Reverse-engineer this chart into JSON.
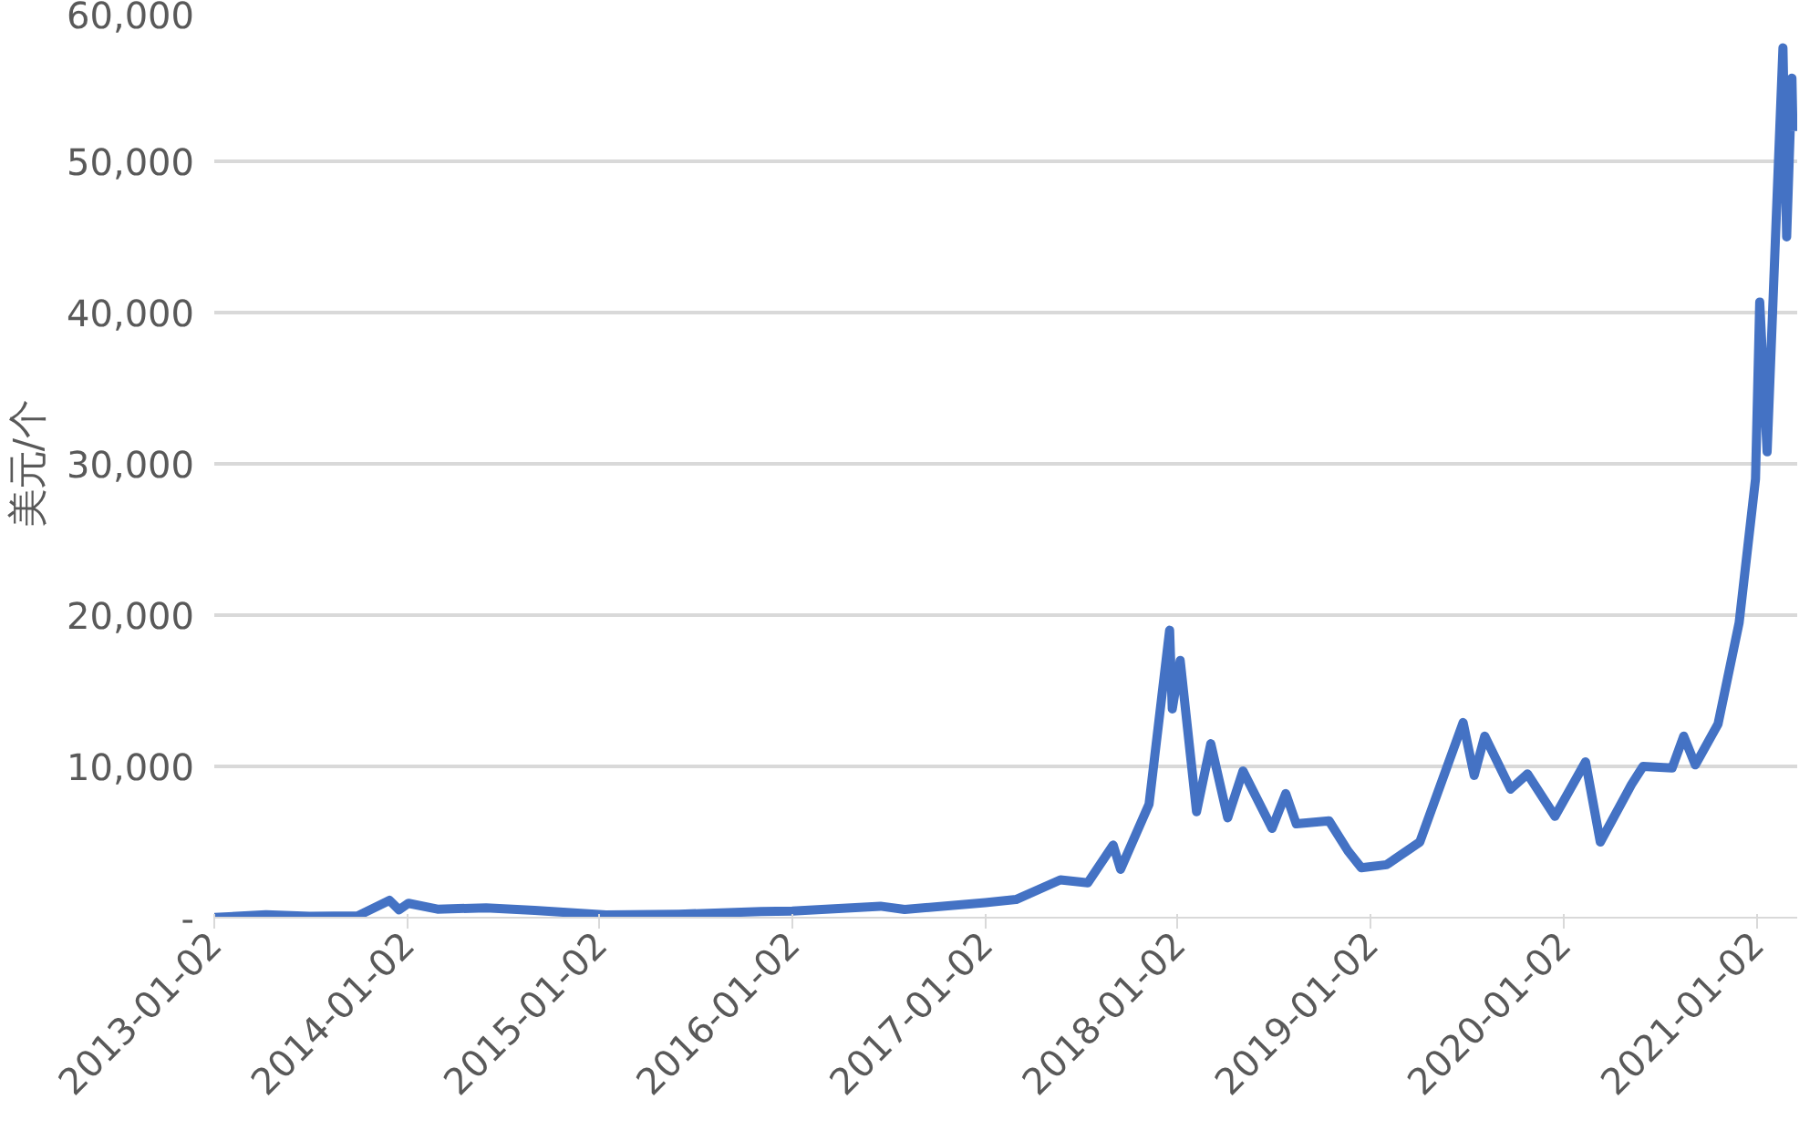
{
  "chart_data": {
    "type": "line",
    "ylabel": "美元/个",
    "grid": "y",
    "line_style": "solid",
    "marker": "none",
    "x": [
      "2013-01-02",
      "2013-04-10",
      "2013-07-01",
      "2013-10-01",
      "2013-11-30",
      "2013-12-18",
      "2014-01-05",
      "2014-03-01",
      "2014-06-01",
      "2014-09-01",
      "2015-01-14",
      "2015-06-01",
      "2015-11-04",
      "2016-01-02",
      "2016-06-17",
      "2016-08-02",
      "2017-01-02",
      "2017-03-01",
      "2017-05-24",
      "2017-07-15",
      "2017-09-01",
      "2017-09-15",
      "2017-11-08",
      "2017-12-17",
      "2017-12-22",
      "2018-01-06",
      "2018-02-06",
      "2018-03-05",
      "2018-04-06",
      "2018-05-05",
      "2018-06-29",
      "2018-07-25",
      "2018-08-14",
      "2018-10-15",
      "2018-11-20",
      "2018-12-15",
      "2019-02-01",
      "2019-04-05",
      "2019-06-26",
      "2019-07-17",
      "2019-08-06",
      "2019-09-24",
      "2019-10-26",
      "2019-12-17",
      "2020-02-13",
      "2020-03-12",
      "2020-05-10",
      "2020-06-01",
      "2020-07-26",
      "2020-08-17",
      "2020-09-08",
      "2020-10-21",
      "2020-11-30",
      "2020-12-31",
      "2021-01-08",
      "2021-01-22",
      "2021-02-08",
      "2021-02-21",
      "2021-02-28",
      "2021-03-10",
      "2021-03-12"
    ],
    "series": [
      {
        "color": "#4472c4",
        "values": [
          13,
          200,
          90,
          125,
          1150,
          520,
          950,
          560,
          650,
          480,
          180,
          230,
          400,
          430,
          760,
          540,
          1000,
          1200,
          2500,
          2300,
          4800,
          3200,
          7500,
          19000,
          13800,
          17000,
          7000,
          11500,
          6600,
          9700,
          5900,
          8200,
          6200,
          6400,
          4400,
          3300,
          3500,
          5000,
          12900,
          9400,
          12000,
          8500,
          9500,
          6700,
          10300,
          5000,
          8800,
          10000,
          9900,
          12000,
          10100,
          12800,
          19500,
          29000,
          40700,
          30800,
          46000,
          57500,
          45000,
          55500,
          52000
        ]
      }
    ],
    "xlim": [
      "2013-01-02",
      "2021-03-20"
    ],
    "xticks": [
      "2013-01-02",
      "2014-01-02",
      "2015-01-02",
      "2016-01-02",
      "2017-01-02",
      "2018-01-02",
      "2019-01-02",
      "2020-01-02",
      "2021-01-02"
    ],
    "ylim": [
      0,
      60000
    ],
    "yticks": [
      {
        "value": 0,
        "label": "-"
      },
      {
        "value": 10000,
        "label": "10,000"
      },
      {
        "value": 20000,
        "label": "20,000"
      },
      {
        "value": 30000,
        "label": "30,000"
      },
      {
        "value": 40000,
        "label": "40,000"
      },
      {
        "value": 50000,
        "label": "50,000"
      },
      {
        "value": 60000,
        "label": "60,000"
      }
    ]
  }
}
